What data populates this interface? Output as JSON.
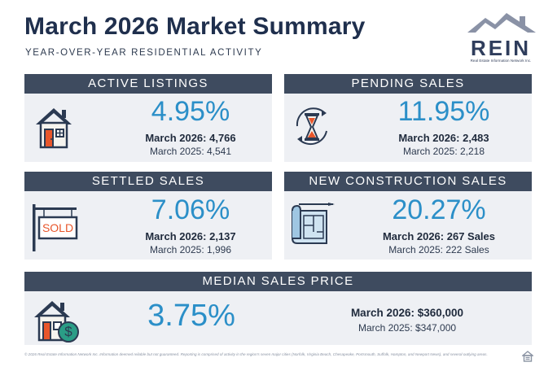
{
  "header": {
    "title": "March 2026 Market Summary",
    "subtitle": "YEAR-OVER-YEAR RESIDENTIAL ACTIVITY"
  },
  "logo": {
    "text": "REIN",
    "tagline": "Real Estate Information Network Inc."
  },
  "cards": {
    "active_listings": {
      "title": "ACTIVE LISTINGS",
      "change": "4.95%",
      "current": "March 2026: 4,766",
      "previous": "March 2025: 4,541",
      "icon": "house-icon"
    },
    "pending_sales": {
      "title": "PENDING SALES",
      "change": "11.95%",
      "current": "March 2026: 2,483",
      "previous": "March 2025: 2,218",
      "icon": "hourglass-icon"
    },
    "settled_sales": {
      "title": "SETTLED SALES",
      "change": "7.06%",
      "current": "March 2026: 2,137",
      "previous": "March 2025: 1,996",
      "icon": "sold-sign-icon",
      "sign_text": "SOLD"
    },
    "new_construction_sales": {
      "title": "NEW CONSTRUCTION SALES",
      "change": "20.27%",
      "current": "March 2026: 267 Sales",
      "previous": "March 2025: 222 Sales",
      "icon": "blueprint-icon"
    },
    "median_sales_price": {
      "title": "MEDIAN SALES PRICE",
      "change": "3.75%",
      "current": "March 2026: $360,000",
      "previous": "March 2025: $347,000",
      "icon": "house-dollar-icon"
    }
  },
  "footer": {
    "disclaimer": "© 2026 Real Estate Information Network Inc. Information deemed reliable but not guaranteed. Reporting is comprised of activity in the region's seven major cities (Norfolk, Virginia Beach, Chesapeake, Portsmouth, Suffolk, Hampton, and Newport News), and several outlying areas."
  },
  "colors": {
    "navy": "#1f2f4d",
    "header_bar": "#3e4b5f",
    "card_bg": "#eef0f4",
    "accent_blue": "#2b8fc8",
    "accent_orange": "#e8562b",
    "accent_teal": "#2a9d86"
  }
}
